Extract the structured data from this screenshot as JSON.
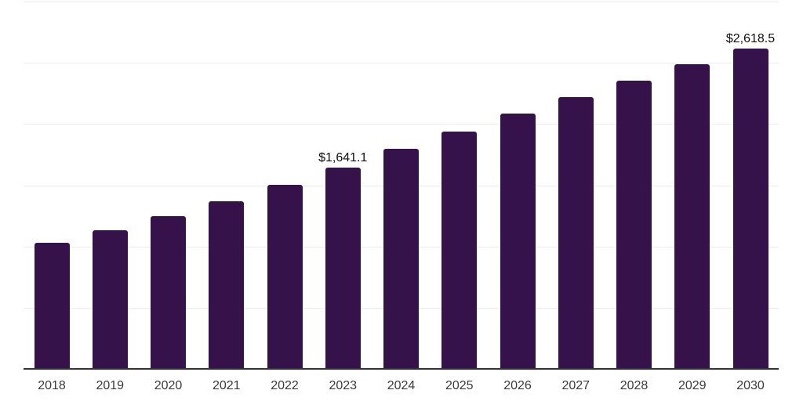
{
  "chart_data": {
    "type": "bar",
    "title": "",
    "xlabel": "",
    "ylabel": "",
    "categories": [
      "2018",
      "2019",
      "2020",
      "2021",
      "2022",
      "2023",
      "2024",
      "2025",
      "2026",
      "2027",
      "2028",
      "2029",
      "2030"
    ],
    "values": [
      1032,
      1134,
      1249,
      1370,
      1504,
      1641.1,
      1797,
      1937,
      2084,
      2217,
      2354,
      2491,
      2618.5
    ],
    "data_labels": [
      {
        "category": "2023",
        "text": "$1,641.1"
      },
      {
        "category": "2030",
        "text": "$2,618.5"
      }
    ],
    "ylim": [
      0,
      3000
    ],
    "grid_step": 500,
    "grid": true,
    "legend": false,
    "y_tick_labels_visible": false,
    "colors": {
      "bar": "#35124A",
      "gridline": "#ECECEC",
      "axis_line": "#333333",
      "tick_label": "#3A3A3A",
      "data_label": "#101010",
      "background": "#FFFFFF"
    }
  }
}
